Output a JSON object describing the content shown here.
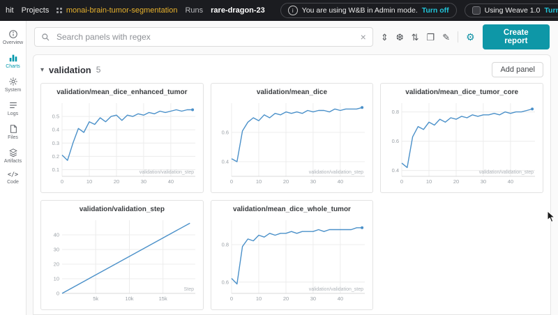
{
  "navbar": {
    "breadcrumb": [
      {
        "label": "hit"
      },
      {
        "label": "Projects"
      },
      {
        "label": "monai-brain-tumor-segmentation"
      },
      {
        "label": "Runs"
      },
      {
        "label": "rare-dragon-23"
      }
    ],
    "admin_banner": {
      "text": "You are using W&B in Admin mode.",
      "action": "Turn off"
    },
    "weave_banner": {
      "text": "Using Weave 1.0",
      "action": "Turn off"
    },
    "icons": {
      "moon_glyph": "☾",
      "help_glyph": "?",
      "info_glyph": "i"
    }
  },
  "sidebar": {
    "items": [
      {
        "label": "Overview"
      },
      {
        "label": "Charts"
      },
      {
        "label": "System"
      },
      {
        "label": "Logs"
      },
      {
        "label": "Files"
      },
      {
        "label": "Artifacts"
      },
      {
        "label": "Code"
      }
    ]
  },
  "toolbar": {
    "search_placeholder": "Search panels with regex",
    "clear_glyph": "×",
    "icons": [
      {
        "name": "expand-panels",
        "glyph": "⇕"
      },
      {
        "name": "snowflake",
        "glyph": "❆"
      },
      {
        "name": "sort",
        "glyph": "⇅"
      },
      {
        "name": "panel-grid",
        "glyph": "❐"
      },
      {
        "name": "sparkle-pen",
        "glyph": "✎"
      },
      {
        "name": "settings-gear",
        "glyph": "⚙"
      }
    ],
    "create_report_label": "Create report"
  },
  "section": {
    "title": "validation",
    "count": "5",
    "add_panel_label": "Add panel"
  },
  "colors": {
    "accent_teal": "#0e97a7",
    "line_blue": "#4a90c9",
    "navbar_bg": "#1b1c20",
    "link_gold": "#e8b22d"
  },
  "chart_data": [
    {
      "type": "line",
      "title": "validation/mean_dice_enhanced_tumor",
      "xlabel": "validation/validation_step",
      "x": [
        0,
        2,
        4,
        6,
        8,
        10,
        12,
        14,
        16,
        18,
        20,
        22,
        24,
        26,
        28,
        30,
        32,
        34,
        36,
        38,
        40,
        42,
        44,
        46,
        48
      ],
      "values": [
        0.21,
        0.17,
        0.3,
        0.41,
        0.38,
        0.46,
        0.44,
        0.49,
        0.46,
        0.5,
        0.51,
        0.47,
        0.51,
        0.5,
        0.52,
        0.51,
        0.53,
        0.52,
        0.54,
        0.53,
        0.54,
        0.55,
        0.54,
        0.55,
        0.55
      ],
      "xlim": [
        0,
        49
      ],
      "ylim": [
        0.05,
        0.6
      ],
      "xticks": [
        0,
        10,
        20,
        30,
        40
      ],
      "yticks": [
        0.1,
        0.2,
        0.3,
        0.4,
        0.5
      ],
      "end_dot": true
    },
    {
      "type": "line",
      "title": "validation/mean_dice",
      "xlabel": "validation/validation_step",
      "x": [
        0,
        2,
        4,
        6,
        8,
        10,
        12,
        14,
        16,
        18,
        20,
        22,
        24,
        26,
        28,
        30,
        32,
        34,
        36,
        38,
        40,
        42,
        44,
        46,
        48
      ],
      "values": [
        0.42,
        0.4,
        0.61,
        0.67,
        0.7,
        0.68,
        0.72,
        0.7,
        0.73,
        0.72,
        0.74,
        0.73,
        0.74,
        0.73,
        0.75,
        0.74,
        0.75,
        0.75,
        0.74,
        0.76,
        0.75,
        0.76,
        0.76,
        0.76,
        0.77
      ],
      "xlim": [
        0,
        49
      ],
      "ylim": [
        0.3,
        0.8
      ],
      "xticks": [
        0,
        10,
        20,
        30,
        40
      ],
      "yticks": [
        0.4,
        0.6
      ],
      "end_dot": true
    },
    {
      "type": "line",
      "title": "validation/mean_dice_tumor_core",
      "xlabel": "validation/validation_step",
      "x": [
        0,
        2,
        4,
        6,
        8,
        10,
        12,
        14,
        16,
        18,
        20,
        22,
        24,
        26,
        28,
        30,
        32,
        34,
        36,
        38,
        40,
        42,
        44,
        46,
        48
      ],
      "values": [
        0.45,
        0.42,
        0.63,
        0.7,
        0.68,
        0.73,
        0.71,
        0.75,
        0.73,
        0.76,
        0.75,
        0.77,
        0.76,
        0.78,
        0.77,
        0.78,
        0.78,
        0.79,
        0.78,
        0.8,
        0.79,
        0.8,
        0.8,
        0.81,
        0.82
      ],
      "xlim": [
        0,
        49
      ],
      "ylim": [
        0.36,
        0.86
      ],
      "xticks": [
        0,
        10,
        20,
        30,
        40
      ],
      "yticks": [
        0.4,
        0.6,
        0.8
      ],
      "end_dot": true
    },
    {
      "type": "line",
      "title": "validation/validation_step",
      "xlabel": "Step",
      "x": [
        0,
        19000
      ],
      "values": [
        0,
        48
      ],
      "xlim": [
        0,
        19800
      ],
      "ylim": [
        0,
        50
      ],
      "xticks": [
        5000,
        10000,
        15000
      ],
      "xtick_labels": [
        "5k",
        "10k",
        "15k"
      ],
      "yticks": [
        0,
        10,
        20,
        30,
        40
      ],
      "end_dot": false
    },
    {
      "type": "line",
      "title": "validation/mean_dice_whole_tumor",
      "xlabel": "validation/validation_step",
      "x": [
        0,
        2,
        4,
        6,
        8,
        10,
        12,
        14,
        16,
        18,
        20,
        22,
        24,
        26,
        28,
        30,
        32,
        34,
        36,
        38,
        40,
        42,
        44,
        46,
        48
      ],
      "values": [
        0.62,
        0.59,
        0.79,
        0.83,
        0.82,
        0.85,
        0.84,
        0.86,
        0.85,
        0.86,
        0.86,
        0.87,
        0.86,
        0.87,
        0.87,
        0.87,
        0.88,
        0.87,
        0.88,
        0.88,
        0.88,
        0.88,
        0.88,
        0.89,
        0.89
      ],
      "xlim": [
        0,
        49
      ],
      "ylim": [
        0.54,
        0.93
      ],
      "xticks": [
        0,
        10,
        20,
        30,
        40
      ],
      "yticks": [
        0.6,
        0.8
      ],
      "end_dot": true
    }
  ]
}
